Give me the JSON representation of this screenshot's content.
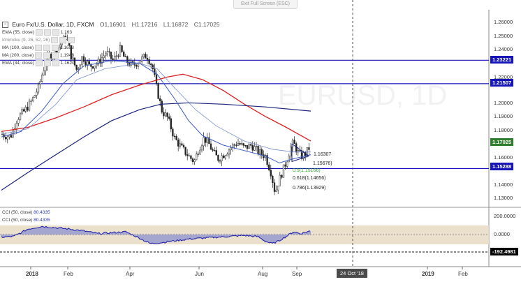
{
  "fullscreen_label": "Exit Full Screen (ESC)",
  "symbol": "Euro Fx/U.S. Dollar, 1D, FXCM",
  "ohlc": {
    "open": "O1.16901",
    "high": "H1.17216",
    "low": "L1.16872",
    "close": "C1.17025"
  },
  "indicators": [
    {
      "name": "EMA (55, close)",
      "value": "1.163",
      "faded": false
    },
    {
      "name": "Ichimoku (9, 26, 52, 26)",
      "value": "",
      "faded": true
    },
    {
      "name": "MA (100, close)",
      "value": "1.1698",
      "faded": false
    },
    {
      "name": "MA (200, close)",
      "value": "1.1948",
      "faded": false
    },
    {
      "name": "EMA (34, close)",
      "value": "1.1620",
      "faded": false
    }
  ],
  "price_axis": [
    "1.26000",
    "1.25000",
    "1.24000",
    "1.23000",
    "1.22000",
    "1.21000",
    "1.20000",
    "1.19000",
    "1.18000",
    "1.17000",
    "1.16000",
    "1.15000",
    "1.14000",
    "1.13000"
  ],
  "price_badges": [
    {
      "label": "1.23221",
      "color": "#1515b8"
    },
    {
      "label": "1.21507",
      "color": "#1515b8"
    },
    {
      "label": "1.17025",
      "color": "#2e7d2e"
    },
    {
      "label": "1.15288",
      "color": "#1515b8"
    }
  ],
  "fib_levels": [
    {
      "label": "1.16307",
      "green": false
    },
    {
      "label": "1.15676)",
      "green": false
    },
    {
      "label": "0.5(1.15166)",
      "green": true
    },
    {
      "label": "0.618(1.14656)",
      "green": false
    },
    {
      "label": "0.786(1.13929)",
      "green": false
    }
  ],
  "watermark": "EURUSD, 1D",
  "cci": {
    "legend_1": "CCI (50, close)",
    "legend_1_value": "80.4335",
    "legend_2": "CCI (50, close)",
    "legend_2_value": "80.4335",
    "axis": [
      "200.0000",
      "0.0000"
    ],
    "badge": "-192.4981"
  },
  "time_axis": [
    "2018",
    "Feb",
    "Apr",
    "Jun",
    "Aug",
    "Sep",
    "2019",
    "Feb"
  ],
  "crosshair_date": "24 Oct '18",
  "colors": {
    "ma200_red": "#e02020",
    "ma_blue": "#1a237e",
    "ema_blue": "#3b5bc4",
    "hline": "#1515b8",
    "candle": "#222222",
    "cci_band": "#e8ddc6"
  }
}
